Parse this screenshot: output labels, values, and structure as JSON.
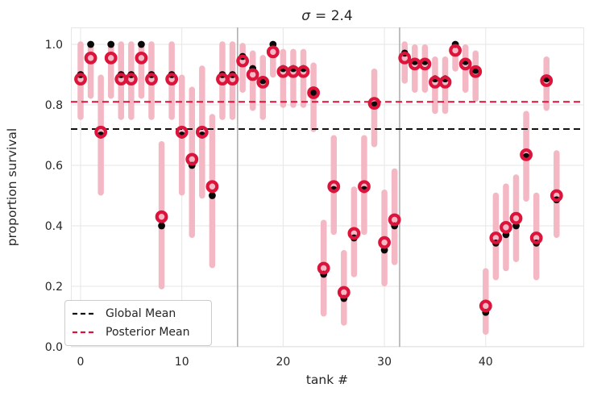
{
  "title": {
    "symbol": "σ",
    "rest": "= 2.4"
  },
  "axes": {
    "xlabel": "tank #",
    "ylabel": "proportion survival",
    "x_ticks": [
      0,
      10,
      20,
      30,
      40
    ],
    "y_ticks": [
      1.0,
      0.8,
      0.6,
      0.4,
      0.2,
      0.0
    ]
  },
  "legend": {
    "items": [
      {
        "label": "Global Mean",
        "color": "#111111"
      },
      {
        "label": "Posterior Mean",
        "color": "#DC143C"
      }
    ]
  },
  "colors": {
    "interval_bar": "#F4B8C4",
    "observed_dot": "#0a0a0a",
    "posterior_ring": "#DC143C",
    "global_mean_line": "#111111",
    "posterior_mean_line": "#DC143C",
    "separator": "#ababab",
    "grid": "#e6e6e6",
    "text": "#262626"
  },
  "chart_data": {
    "type": "scatter",
    "title": "σ = 2.4",
    "xlabel": "tank #",
    "ylabel": "proportion survival",
    "xlim": [
      -1,
      49.5
    ],
    "ylim": [
      0.0,
      1.05
    ],
    "grid": true,
    "legend_position": "lower left",
    "global_mean": 0.72,
    "posterior_mean": 0.81,
    "group_separators_x": [
      15.5,
      31.5
    ],
    "series": [
      {
        "name": "observed proportion",
        "marker": "black dot"
      },
      {
        "name": "posterior mean",
        "marker": "crimson open circle"
      },
      {
        "name": "credible interval",
        "marker": "pink vertical bar"
      }
    ],
    "tanks": [
      {
        "tank": 0,
        "observed": 0.9,
        "posterior": 0.885,
        "interval_lo": 0.76,
        "interval_hi": 1.0
      },
      {
        "tank": 1,
        "observed": 1.0,
        "posterior": 0.955,
        "interval_lo": 0.83,
        "interval_hi": 1.0
      },
      {
        "tank": 2,
        "observed": 0.7,
        "posterior": 0.71,
        "interval_lo": 0.51,
        "interval_hi": 0.89
      },
      {
        "tank": 3,
        "observed": 1.0,
        "posterior": 0.955,
        "interval_lo": 0.83,
        "interval_hi": 1.0
      },
      {
        "tank": 4,
        "observed": 0.9,
        "posterior": 0.885,
        "interval_lo": 0.76,
        "interval_hi": 1.0
      },
      {
        "tank": 5,
        "observed": 0.9,
        "posterior": 0.885,
        "interval_lo": 0.76,
        "interval_hi": 1.0
      },
      {
        "tank": 6,
        "observed": 1.0,
        "posterior": 0.955,
        "interval_lo": 0.83,
        "interval_hi": 1.0
      },
      {
        "tank": 7,
        "observed": 0.9,
        "posterior": 0.885,
        "interval_lo": 0.76,
        "interval_hi": 1.0
      },
      {
        "tank": 8,
        "observed": 0.4,
        "posterior": 0.43,
        "interval_lo": 0.2,
        "interval_hi": 0.67
      },
      {
        "tank": 9,
        "observed": 0.9,
        "posterior": 0.885,
        "interval_lo": 0.76,
        "interval_hi": 1.0
      },
      {
        "tank": 10,
        "observed": 0.7,
        "posterior": 0.71,
        "interval_lo": 0.51,
        "interval_hi": 0.89
      },
      {
        "tank": 11,
        "observed": 0.6,
        "posterior": 0.62,
        "interval_lo": 0.37,
        "interval_hi": 0.85
      },
      {
        "tank": 12,
        "observed": 0.7,
        "posterior": 0.71,
        "interval_lo": 0.5,
        "interval_hi": 0.92
      },
      {
        "tank": 13,
        "observed": 0.5,
        "posterior": 0.53,
        "interval_lo": 0.27,
        "interval_hi": 0.76
      },
      {
        "tank": 14,
        "observed": 0.9,
        "posterior": 0.885,
        "interval_lo": 0.76,
        "interval_hi": 1.0
      },
      {
        "tank": 15,
        "observed": 0.9,
        "posterior": 0.885,
        "interval_lo": 0.76,
        "interval_hi": 1.0
      },
      {
        "tank": 16,
        "observed": 0.96,
        "posterior": 0.945,
        "interval_lo": 0.85,
        "interval_hi": 0.995
      },
      {
        "tank": 17,
        "observed": 0.92,
        "posterior": 0.9,
        "interval_lo": 0.79,
        "interval_hi": 0.97
      },
      {
        "tank": 18,
        "observed": 0.88,
        "posterior": 0.875,
        "interval_lo": 0.76,
        "interval_hi": 0.955
      },
      {
        "tank": 19,
        "observed": 1.0,
        "posterior": 0.975,
        "interval_lo": 0.9,
        "interval_hi": 1.0
      },
      {
        "tank": 20,
        "observed": 0.92,
        "posterior": 0.91,
        "interval_lo": 0.8,
        "interval_hi": 0.975
      },
      {
        "tank": 21,
        "observed": 0.92,
        "posterior": 0.91,
        "interval_lo": 0.8,
        "interval_hi": 0.975
      },
      {
        "tank": 22,
        "observed": 0.92,
        "posterior": 0.91,
        "interval_lo": 0.8,
        "interval_hi": 0.975
      },
      {
        "tank": 23,
        "observed": 0.84,
        "posterior": 0.84,
        "interval_lo": 0.72,
        "interval_hi": 0.93
      },
      {
        "tank": 24,
        "observed": 0.24,
        "posterior": 0.26,
        "interval_lo": 0.11,
        "interval_hi": 0.41
      },
      {
        "tank": 25,
        "observed": 0.52,
        "posterior": 0.53,
        "interval_lo": 0.38,
        "interval_hi": 0.69
      },
      {
        "tank": 26,
        "observed": 0.16,
        "posterior": 0.18,
        "interval_lo": 0.08,
        "interval_hi": 0.31
      },
      {
        "tank": 27,
        "observed": 0.36,
        "posterior": 0.375,
        "interval_lo": 0.24,
        "interval_hi": 0.52
      },
      {
        "tank": 28,
        "observed": 0.52,
        "posterior": 0.53,
        "interval_lo": 0.38,
        "interval_hi": 0.69
      },
      {
        "tank": 29,
        "observed": 0.8,
        "posterior": 0.805,
        "interval_lo": 0.67,
        "interval_hi": 0.91
      },
      {
        "tank": 30,
        "observed": 0.32,
        "posterior": 0.345,
        "interval_lo": 0.21,
        "interval_hi": 0.51
      },
      {
        "tank": 31,
        "observed": 0.4,
        "posterior": 0.42,
        "interval_lo": 0.28,
        "interval_hi": 0.58
      },
      {
        "tank": 32,
        "observed": 0.971,
        "posterior": 0.955,
        "interval_lo": 0.88,
        "interval_hi": 1.0
      },
      {
        "tank": 33,
        "observed": 0.943,
        "posterior": 0.935,
        "interval_lo": 0.85,
        "interval_hi": 0.99
      },
      {
        "tank": 34,
        "observed": 0.943,
        "posterior": 0.935,
        "interval_lo": 0.85,
        "interval_hi": 0.99
      },
      {
        "tank": 35,
        "observed": 0.886,
        "posterior": 0.875,
        "interval_lo": 0.78,
        "interval_hi": 0.95
      },
      {
        "tank": 36,
        "observed": 0.886,
        "posterior": 0.875,
        "interval_lo": 0.78,
        "interval_hi": 0.95
      },
      {
        "tank": 37,
        "observed": 1.0,
        "posterior": 0.98,
        "interval_lo": 0.92,
        "interval_hi": 1.0
      },
      {
        "tank": 38,
        "observed": 0.943,
        "posterior": 0.935,
        "interval_lo": 0.85,
        "interval_hi": 0.99
      },
      {
        "tank": 39,
        "observed": 0.914,
        "posterior": 0.91,
        "interval_lo": 0.82,
        "interval_hi": 0.97
      },
      {
        "tank": 40,
        "observed": 0.114,
        "posterior": 0.135,
        "interval_lo": 0.05,
        "interval_hi": 0.25
      },
      {
        "tank": 41,
        "observed": 0.343,
        "posterior": 0.36,
        "interval_lo": 0.23,
        "interval_hi": 0.5
      },
      {
        "tank": 42,
        "observed": 0.371,
        "posterior": 0.395,
        "interval_lo": 0.26,
        "interval_hi": 0.53
      },
      {
        "tank": 43,
        "observed": 0.4,
        "posterior": 0.425,
        "interval_lo": 0.29,
        "interval_hi": 0.56
      },
      {
        "tank": 44,
        "observed": 0.629,
        "posterior": 0.635,
        "interval_lo": 0.49,
        "interval_hi": 0.77
      },
      {
        "tank": 45,
        "observed": 0.343,
        "posterior": 0.36,
        "interval_lo": 0.23,
        "interval_hi": 0.5
      },
      {
        "tank": 46,
        "observed": 0.886,
        "posterior": 0.88,
        "interval_lo": 0.79,
        "interval_hi": 0.95
      },
      {
        "tank": 47,
        "observed": 0.486,
        "posterior": 0.5,
        "interval_lo": 0.37,
        "interval_hi": 0.64
      }
    ]
  }
}
